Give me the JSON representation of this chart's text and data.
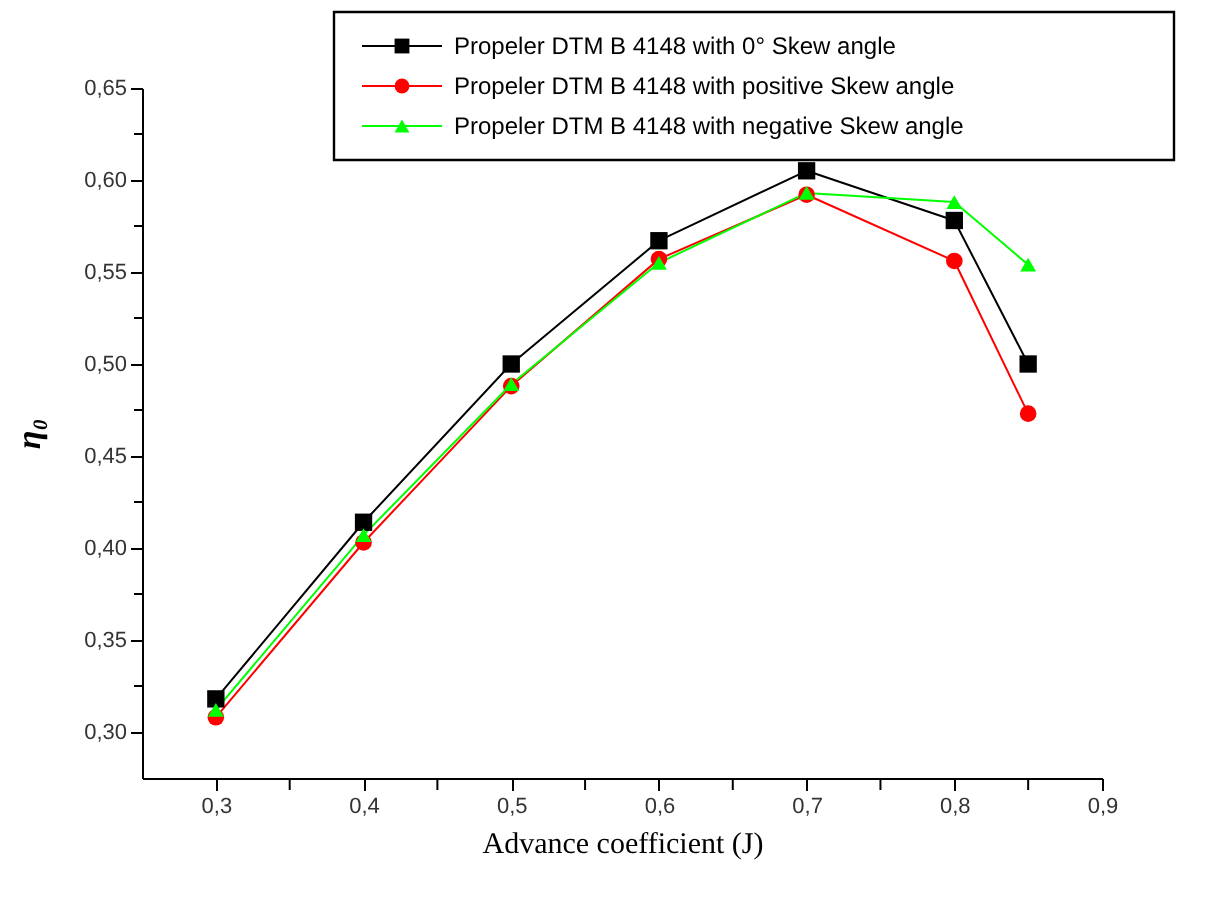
{
  "chart_data": {
    "type": "line",
    "xlabel": "Advance coefficient (J)",
    "ylabel": "η₀",
    "x": [
      0.3,
      0.4,
      0.5,
      0.6,
      0.7,
      0.8,
      0.85
    ],
    "series": [
      {
        "name": "Propeler DTM B 4148 with 0° Skew angle",
        "color": "#000000",
        "marker": "square",
        "values": [
          0.318,
          0.414,
          0.5,
          0.567,
          0.605,
          0.578,
          0.5
        ]
      },
      {
        "name": "Propeler DTM B 4148 with positive Skew angle",
        "color": "#ff0000",
        "marker": "circle",
        "values": [
          0.308,
          0.403,
          0.488,
          0.557,
          0.592,
          0.556,
          0.473
        ]
      },
      {
        "name": "Propeler DTM B 4148 with negative Skew angle",
        "color": "#00ff00",
        "marker": "triangle",
        "values": [
          0.312,
          0.407,
          0.489,
          0.555,
          0.593,
          0.588,
          0.554
        ]
      }
    ],
    "xlim": [
      0.25,
      0.9
    ],
    "xticks": [
      {
        "value": 0.3,
        "label": "0,3"
      },
      {
        "value": 0.35,
        "label": null
      },
      {
        "value": 0.4,
        "label": "0,4"
      },
      {
        "value": 0.45,
        "label": null
      },
      {
        "value": 0.5,
        "label": "0,5"
      },
      {
        "value": 0.55,
        "label": null
      },
      {
        "value": 0.6,
        "label": "0,6"
      },
      {
        "value": 0.65,
        "label": null
      },
      {
        "value": 0.7,
        "label": "0,7"
      },
      {
        "value": 0.75,
        "label": null
      },
      {
        "value": 0.8,
        "label": "0,8"
      },
      {
        "value": 0.85,
        "label": null
      },
      {
        "value": 0.9,
        "label": "0,9"
      }
    ],
    "ylim": [
      0.275,
      0.65
    ],
    "yticks": [
      {
        "value": 0.3,
        "label": "0,30"
      },
      {
        "value": 0.325,
        "label": null
      },
      {
        "value": 0.35,
        "label": "0,35"
      },
      {
        "value": 0.375,
        "label": null
      },
      {
        "value": 0.4,
        "label": "0,40"
      },
      {
        "value": 0.425,
        "label": null
      },
      {
        "value": 0.45,
        "label": "0,45"
      },
      {
        "value": 0.475,
        "label": null
      },
      {
        "value": 0.5,
        "label": "0,50"
      },
      {
        "value": 0.525,
        "label": null
      },
      {
        "value": 0.55,
        "label": "0,55"
      },
      {
        "value": 0.575,
        "label": null
      },
      {
        "value": 0.6,
        "label": "0,60"
      },
      {
        "value": 0.625,
        "label": null
      },
      {
        "value": 0.65,
        "label": "0,65"
      }
    ],
    "grid": false,
    "legend": "top right",
    "line_style": "solid"
  }
}
